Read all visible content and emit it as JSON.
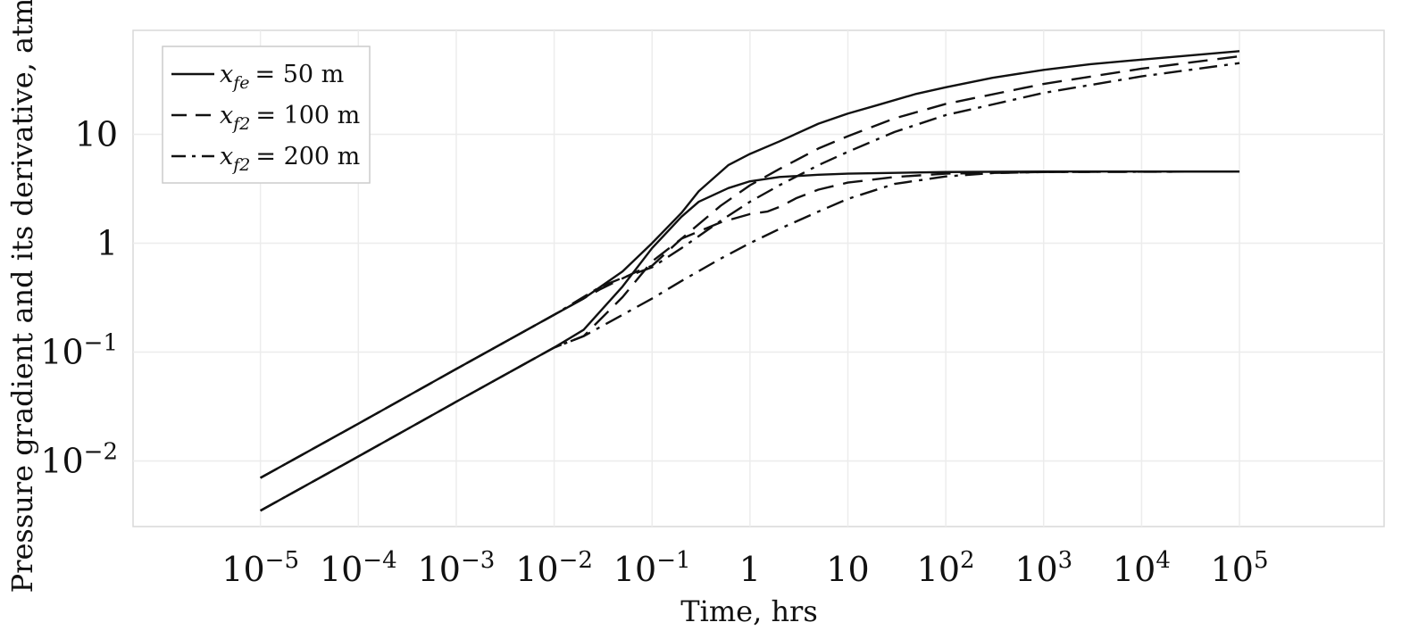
{
  "chart_data": {
    "type": "line",
    "xscale": "log",
    "yscale": "log",
    "xlabel": "Time, hrs",
    "ylabel": "Pressure gradient and its derivative, atm",
    "xlim": [
      5e-07,
      3000000.0
    ],
    "ylim": [
      0.0025,
      90
    ],
    "grid": true,
    "legend_position": "top-left",
    "x_ticks": [
      {
        "value": 1e-05,
        "base": "10",
        "exp": "−5"
      },
      {
        "value": 0.0001,
        "base": "10",
        "exp": "−4"
      },
      {
        "value": 0.001,
        "base": "10",
        "exp": "−3"
      },
      {
        "value": 0.01,
        "base": "10",
        "exp": "−2"
      },
      {
        "value": 0.1,
        "base": "10",
        "exp": "−1"
      },
      {
        "value": 1,
        "base": "1",
        "exp": ""
      },
      {
        "value": 10,
        "base": "10",
        "exp": ""
      },
      {
        "value": 100,
        "base": "10",
        "exp": "2"
      },
      {
        "value": 1000,
        "base": "10",
        "exp": "3"
      },
      {
        "value": 10000,
        "base": "10",
        "exp": "4"
      },
      {
        "value": 100000,
        "base": "10",
        "exp": "5"
      }
    ],
    "y_ticks": [
      {
        "value": 0.01,
        "base": "10",
        "exp": "−2"
      },
      {
        "value": 0.1,
        "base": "10",
        "exp": "−1"
      },
      {
        "value": 1,
        "base": "1",
        "exp": ""
      },
      {
        "value": 10,
        "base": "10",
        "exp": ""
      }
    ],
    "series": [
      {
        "legend": {
          "var": "x",
          "sub": "fe",
          "rhs": "= 50 m"
        },
        "dash": "solid",
        "pressure": {
          "x": [
            1e-05,
            0.0001,
            0.001,
            0.01,
            0.02,
            0.05,
            0.1,
            0.2,
            0.3,
            0.6,
            1,
            2,
            5,
            10,
            20,
            50,
            100,
            300,
            1000,
            3000,
            10000,
            100000
          ],
          "y": [
            0.007,
            0.022,
            0.07,
            0.22,
            0.31,
            0.55,
            1.0,
            1.9,
            3.0,
            5.2,
            6.6,
            8.6,
            12.5,
            15.5,
            18.5,
            23.5,
            27,
            33,
            39,
            44,
            48.5,
            58
          ]
        },
        "derivative": {
          "x": [
            1e-05,
            0.0001,
            0.001,
            0.01,
            0.02,
            0.05,
            0.1,
            0.2,
            0.3,
            0.6,
            1,
            2,
            5,
            10,
            100,
            1000,
            100000
          ],
          "y": [
            0.0035,
            0.011,
            0.035,
            0.11,
            0.16,
            0.4,
            0.9,
            1.75,
            2.4,
            3.2,
            3.7,
            4.05,
            4.25,
            4.35,
            4.5,
            4.55,
            4.55
          ]
        }
      },
      {
        "legend": {
          "var": "x",
          "sub": "f2",
          "rhs": "= 100 m"
        },
        "dash": "dash",
        "pressure": {
          "x": [
            1e-05,
            0.0001,
            0.001,
            0.01,
            0.03,
            0.07,
            0.1,
            0.2,
            0.5,
            1,
            2,
            5,
            10,
            30,
            100,
            1000,
            10000,
            100000
          ],
          "y": [
            0.007,
            0.022,
            0.07,
            0.22,
            0.38,
            0.55,
            0.62,
            1.1,
            2.2,
            3.4,
            4.8,
            7.4,
            9.6,
            14,
            19,
            29,
            40,
            52
          ]
        },
        "derivative": {
          "x": [
            1e-05,
            0.0001,
            0.001,
            0.01,
            0.02,
            0.05,
            0.1,
            0.2,
            0.5,
            1,
            1.5,
            2,
            3,
            5,
            10,
            30,
            100,
            1000,
            100000
          ],
          "y": [
            0.0035,
            0.011,
            0.035,
            0.11,
            0.14,
            0.32,
            0.68,
            1.1,
            1.55,
            1.85,
            1.95,
            2.15,
            2.6,
            3.1,
            3.6,
            4.05,
            4.35,
            4.5,
            4.55
          ]
        }
      },
      {
        "legend": {
          "var": "x",
          "sub": "f2",
          "rhs": "= 200 m"
        },
        "dash": "dashdot",
        "pressure": {
          "x": [
            1e-05,
            0.0001,
            0.001,
            0.01,
            0.03,
            0.05,
            0.1,
            0.2,
            0.5,
            1,
            2,
            5,
            10,
            30,
            100,
            1000,
            10000,
            100000
          ],
          "y": [
            0.007,
            0.022,
            0.07,
            0.22,
            0.4,
            0.48,
            0.6,
            0.9,
            1.6,
            2.4,
            3.4,
            5.2,
            6.9,
            10.5,
            15,
            24,
            34,
            45
          ]
        },
        "derivative": {
          "x": [
            1e-05,
            0.0001,
            0.001,
            0.01,
            0.02,
            0.05,
            0.1,
            0.2,
            0.5,
            1,
            2,
            5,
            10,
            30,
            100,
            300,
            1000,
            100000
          ],
          "y": [
            0.0035,
            0.011,
            0.035,
            0.11,
            0.14,
            0.22,
            0.31,
            0.45,
            0.72,
            1.0,
            1.35,
            1.95,
            2.55,
            3.5,
            4.1,
            4.4,
            4.5,
            4.55
          ]
        }
      }
    ]
  }
}
